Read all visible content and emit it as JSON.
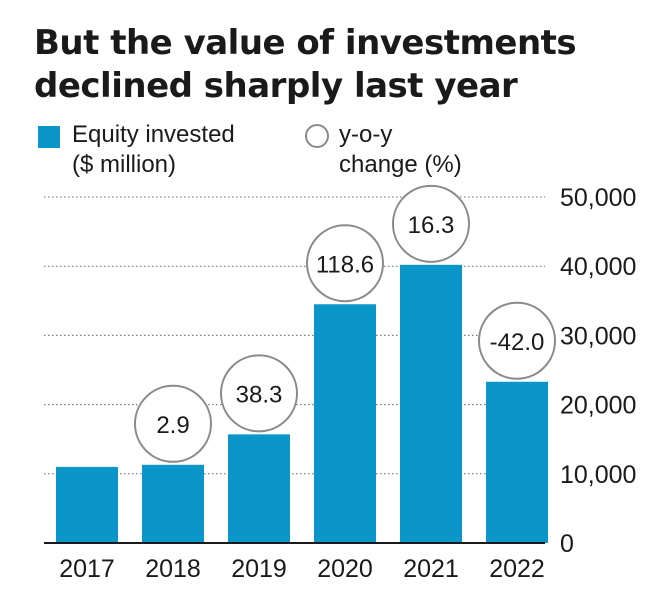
{
  "title_lines": [
    "But the value of investments",
    "declined sharply last year"
  ],
  "legend": {
    "bar_label_lines": [
      "Equity invested",
      "($ million)"
    ],
    "circle_label_lines": [
      "y-o-y",
      "change (%)"
    ]
  },
  "colors": {
    "bar": "#0a96c8",
    "circle_stroke": "#8a8a8a",
    "grid": "#6b6b6b",
    "axis": "#1a1a1a"
  },
  "chart_data": {
    "type": "bar",
    "categories": [
      "2017",
      "2018",
      "2019",
      "2020",
      "2021",
      "2022"
    ],
    "series": [
      {
        "name": "Equity invested ($ million)",
        "values": [
          11000,
          11300,
          15700,
          34500,
          40200,
          23300
        ]
      },
      {
        "name": "y-o-y change (%)",
        "values": [
          null,
          "2.9",
          "38.3",
          "118.6",
          "16.3",
          "-42.0"
        ]
      }
    ],
    "ylim": [
      0,
      50000
    ],
    "yticks": [
      0,
      10000,
      20000,
      30000,
      40000,
      50000
    ],
    "ytick_labels": [
      "0",
      "10,000",
      "20,000",
      "30,000",
      "40,000",
      "50,000"
    ],
    "y_axis_side": "right",
    "grid": "dotted horizontal"
  }
}
